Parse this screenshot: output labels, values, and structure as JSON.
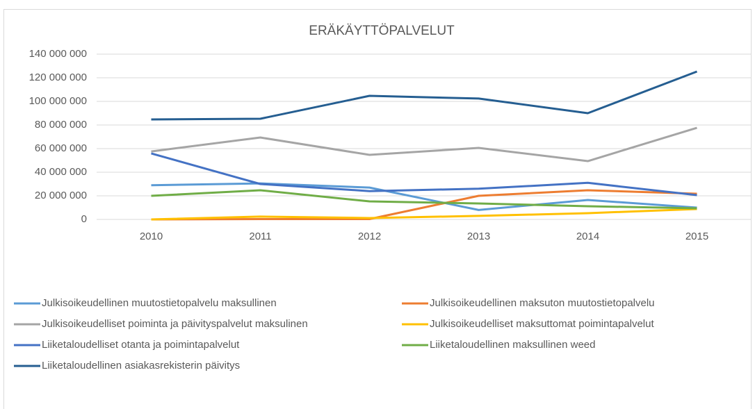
{
  "chart_data": {
    "type": "line",
    "title": "ERÄKÄYTTÖPALVELUT",
    "categories": [
      "2010",
      "2011",
      "2012",
      "2013",
      "2014",
      "2015"
    ],
    "ylim": [
      0,
      140000000
    ],
    "yticks": [
      {
        "value": 0,
        "label": "0"
      },
      {
        "value": 20000000,
        "label": "20 000 000"
      },
      {
        "value": 40000000,
        "label": "40 000 000"
      },
      {
        "value": 60000000,
        "label": "60 000 000"
      },
      {
        "value": 80000000,
        "label": "80 000 000"
      },
      {
        "value": 100000000,
        "label": "100 000 000"
      },
      {
        "value": 120000000,
        "label": "120 000 000"
      },
      {
        "value": 140000000,
        "label": "140 000 000"
      }
    ],
    "grid": true,
    "legend": "bottom",
    "series": [
      {
        "name": "Julkisoikeudellinen muutostietopalvelu maksullinen",
        "color": "#5b9bd5",
        "values": [
          29000000,
          30500000,
          27000000,
          8000000,
          16500000,
          10000000
        ]
      },
      {
        "name": "Julkisoikeudellinen maksuton muutostietopalvelu",
        "color": "#ed7d31",
        "values": [
          0,
          300000,
          300000,
          20000000,
          24700000,
          21800000
        ]
      },
      {
        "name": "Julkisoikeudelliset poiminta ja päivityspalvelut maksulinen",
        "color": "#a5a5a5",
        "values": [
          57600000,
          69400000,
          54700000,
          60600000,
          49400000,
          77600000
        ]
      },
      {
        "name": "Julkisoikeudelliset maksuttomat poimintapalvelut",
        "color": "#ffc000",
        "values": [
          0,
          2400000,
          1200000,
          3000000,
          5300000,
          8800000
        ]
      },
      {
        "name": "Liiketaloudelliset otanta ja poimintapalvelut",
        "color": "#4472c4",
        "values": [
          55900000,
          30000000,
          24000000,
          26000000,
          31000000,
          20600000
        ]
      },
      {
        "name": "Liiketaloudellinen maksullinen weed",
        "color": "#70ad47",
        "values": [
          20000000,
          24700000,
          15300000,
          13500000,
          11200000,
          9400000
        ]
      },
      {
        "name": "Liiketaloudellinen asiakasrekisterin päivitys",
        "color": "#255e91",
        "values": [
          84700000,
          85300000,
          104700000,
          102400000,
          90000000,
          125300000
        ]
      }
    ]
  }
}
